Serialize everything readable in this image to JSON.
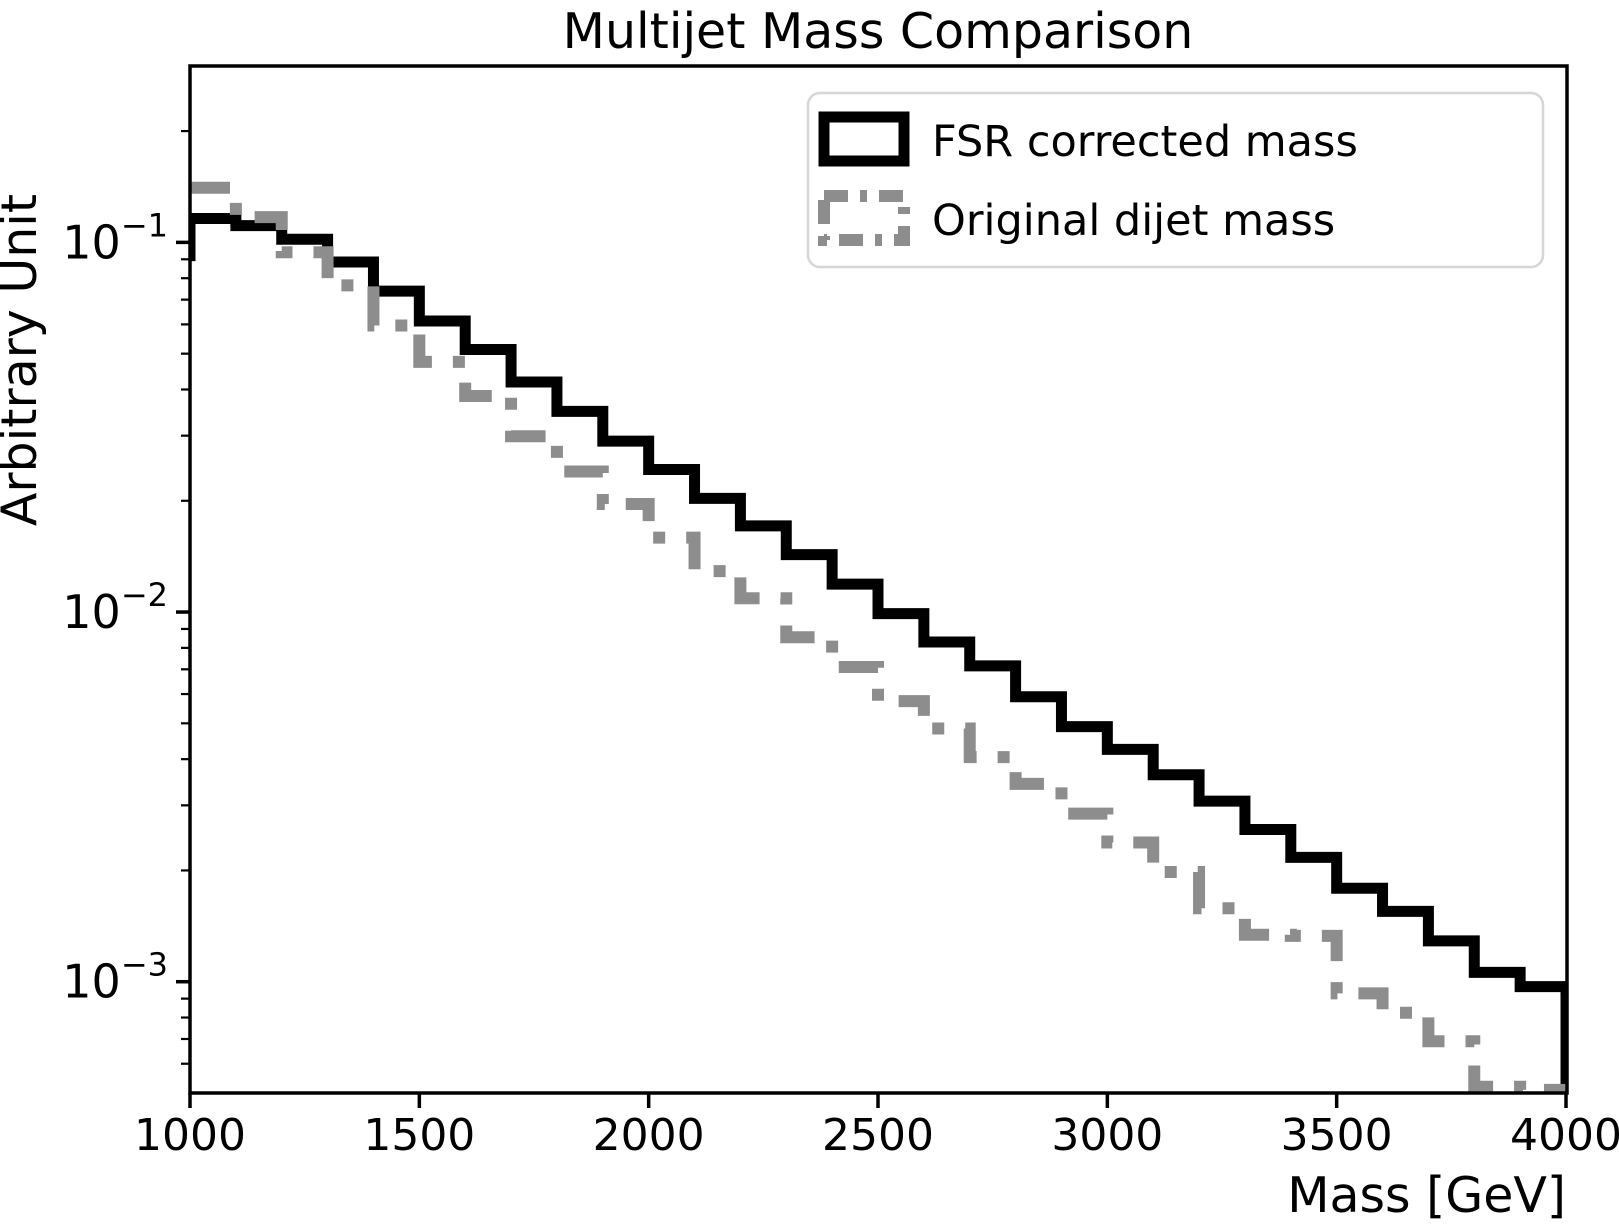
{
  "title": "Multijet Mass Comparison",
  "xlabel": "Mass [GeV]",
  "ylabel": "Arbitrary Unit",
  "legend": {
    "items": [
      {
        "label": "FSR corrected mass",
        "swatch": "black-solid-rect-icon"
      },
      {
        "label": "Original dijet mass",
        "swatch": "gray-dashdot-rect-icon"
      }
    ],
    "border_color": "#d6d6d6",
    "background": "#ffffff"
  },
  "colors": {
    "fsr": "#000000",
    "original": "#8d8d8d"
  },
  "chart_data": {
    "type": "step-histogram",
    "title": "Multijet Mass Comparison",
    "xlabel": "Mass [GeV]",
    "ylabel": "Arbitrary Unit",
    "xscale": "linear",
    "yscale": "log",
    "xlim": [
      1000,
      4000
    ],
    "ylim": [
      0.0005,
      0.3
    ],
    "grid": false,
    "legend_position": "upper right",
    "xticks": [
      1000,
      1500,
      2000,
      2500,
      3000,
      3500,
      4000
    ],
    "yticks": [
      {
        "value": 0.1,
        "base": "10",
        "sup": "−1"
      },
      {
        "value": 0.01,
        "base": "10",
        "sup": "−2"
      },
      {
        "value": 0.001,
        "base": "10",
        "sup": "−3"
      }
    ],
    "bin_width": 100,
    "bin_edges": [
      1000,
      1100,
      1200,
      1300,
      1400,
      1500,
      1600,
      1700,
      1800,
      1900,
      2000,
      2100,
      2200,
      2300,
      2400,
      2500,
      2600,
      2700,
      2800,
      2900,
      3000,
      3100,
      3200,
      3300,
      3400,
      3500,
      3600,
      3700,
      3800,
      3900,
      4000
    ],
    "series": [
      {
        "name": "FSR corrected mass",
        "color": "#000000",
        "line_style": "solid",
        "line_width": 11,
        "start_stub_value": 0.089,
        "end_drop_to_axis": true,
        "values": [
          0.116,
          0.111,
          0.102,
          0.0885,
          0.0738,
          0.0613,
          0.0513,
          0.0419,
          0.0349,
          0.029,
          0.0243,
          0.0203,
          0.0171,
          0.0143,
          0.0119,
          0.0099,
          0.0083,
          0.00715,
          0.0059,
          0.0049,
          0.00425,
          0.00363,
          0.00308,
          0.00258,
          0.00217,
          0.00179,
          0.00155,
          0.00129,
          0.00106,
          0.00097
        ]
      },
      {
        "name": "Original dijet mass",
        "color": "#8d8d8d",
        "line_style": "dashdot",
        "line_width": 12,
        "start_stub_value": null,
        "end_drop_to_axis": true,
        "values": [
          0.1405,
          0.117,
          0.094,
          0.0765,
          0.0596,
          0.0475,
          0.0384,
          0.0299,
          0.024,
          0.0196,
          0.0159,
          0.0129,
          0.0109,
          0.00855,
          0.0071,
          0.00574,
          0.00484,
          0.00405,
          0.00343,
          0.00285,
          0.00238,
          0.00198,
          0.00158,
          0.00134,
          0.00133,
          0.00093,
          0.000824,
          0.00069,
          0.00052,
          0.00051
        ]
      }
    ]
  }
}
